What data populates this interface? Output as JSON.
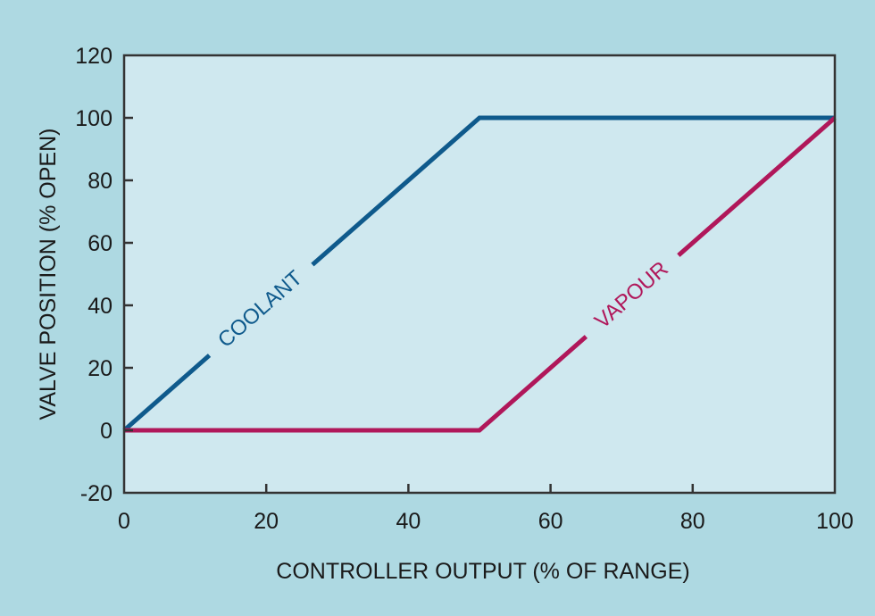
{
  "chart_data": {
    "type": "line",
    "title": "",
    "xlabel": "CONTROLLER OUTPUT (% OF RANGE)",
    "ylabel": "VALVE POSITION (% OPEN)",
    "xlim": [
      0,
      100
    ],
    "ylim": [
      -20,
      120
    ],
    "xticks": [
      0,
      20,
      40,
      60,
      80,
      100
    ],
    "yticks": [
      -20,
      0,
      20,
      40,
      60,
      80,
      100,
      120
    ],
    "grid": false,
    "legend": "inline labels on lines",
    "series": [
      {
        "name": "COOLANT",
        "color": "#0f5a8c",
        "x": [
          0,
          50,
          100
        ],
        "y": [
          0,
          100,
          100
        ]
      },
      {
        "name": "VAPOUR",
        "color": "#b0175a",
        "x": [
          0,
          50,
          100
        ],
        "y": [
          0,
          0,
          100
        ]
      }
    ]
  },
  "colors": {
    "background": "#aed9e2",
    "plot_background": "#cfe8ef",
    "axis": "#333333"
  }
}
